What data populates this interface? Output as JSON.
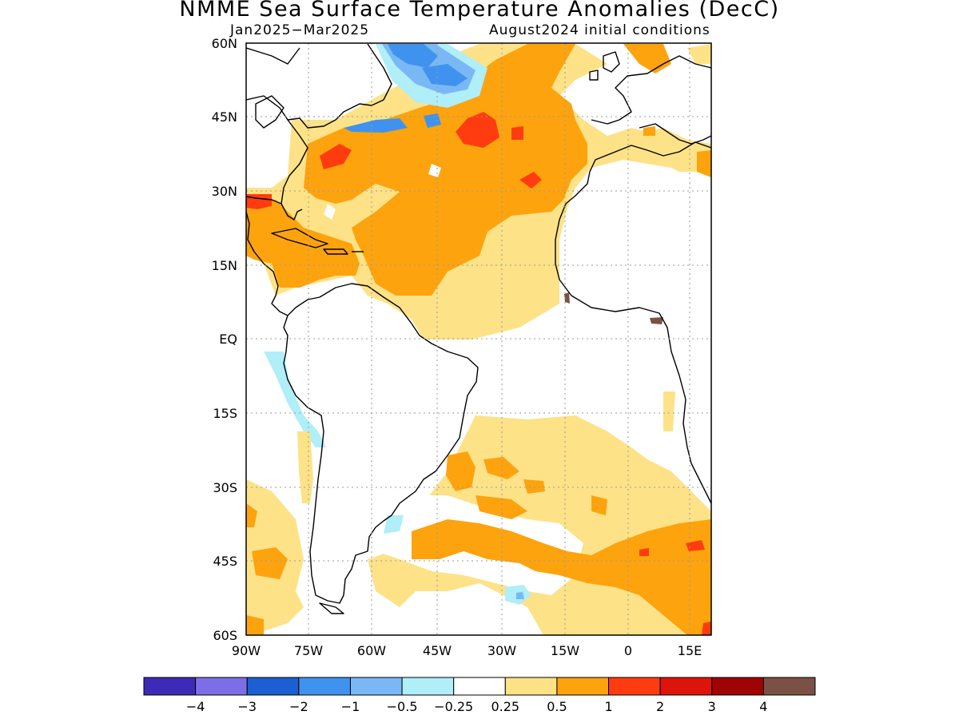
{
  "title": "NMME Sea Surface Temperature Anomalies (DecC)",
  "subtitle_left": "Jan2025−Mar2025",
  "subtitle_right": "August2024 initial conditions",
  "lat_labels": [
    "60N",
    "45N",
    "30N",
    "15N",
    "EQ",
    "15S",
    "30S",
    "45S",
    "60S"
  ],
  "lon_labels": [
    "90W",
    "75W",
    "60W",
    "45W",
    "30W",
    "15W",
    "0",
    "15E"
  ],
  "colorbar": {
    "colors": [
      "#3d2bb8",
      "#7d6ee8",
      "#1c5fd0",
      "#3f93ef",
      "#7ab8f5",
      "#b0eef8",
      "#ffffff",
      "#fde287",
      "#fda30e",
      "#ff3c0f",
      "#dc1409",
      "#a00304",
      "#7a5144"
    ],
    "labels": [
      "−4",
      "−3",
      "−2",
      "−1",
      "−0.5",
      "−0.25",
      "0.25",
      "0.5",
      "1",
      "2",
      "3",
      "4"
    ]
  },
  "legend_colors": {
    "ocean_neutral": "#ffffff",
    "warm_light": "#fde287",
    "warm": "#fda30e",
    "warm_strong": "#ff3c0f",
    "cold_light": "#b0eef8",
    "cold": "#7ab8f5",
    "cold_strong": "#3f93ef",
    "cold_stronger": "#1c5fd0",
    "extreme": "#7a5144"
  }
}
